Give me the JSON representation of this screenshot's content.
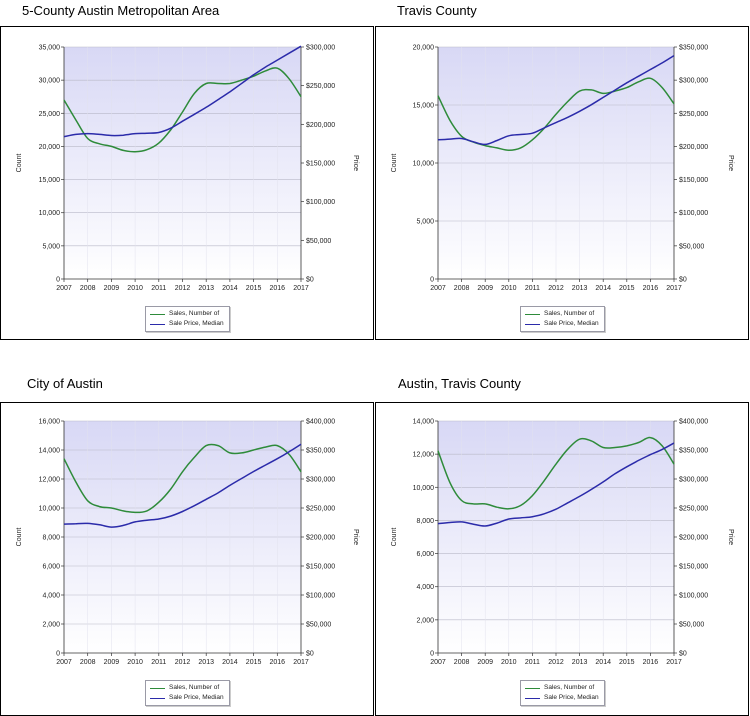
{
  "colors": {
    "sales": "#2e8b3a",
    "price": "#2b2baa",
    "bg_top": "#d8d8f5",
    "bg_bottom": "#ffffff",
    "grid": "#b9b9c8",
    "axis": "#333333"
  },
  "legend": {
    "sales_label": "Sales, Number of",
    "price_label": "Sale Price, Median"
  },
  "chart_data": [
    {
      "type": "line",
      "title": "5-County Austin Metropolitan Area",
      "xlabel": "",
      "ylabel": "Count",
      "y2label": "Price",
      "x_ticks": [
        "2007",
        "2008",
        "2009",
        "2010",
        "2011",
        "2012",
        "2013",
        "2014",
        "2015",
        "2016",
        "2017"
      ],
      "ylim": [
        0,
        35000
      ],
      "y_ticks": [
        "0",
        "5,000",
        "10,000",
        "15,000",
        "20,000",
        "25,000",
        "30,000",
        "35,000"
      ],
      "y2lim": [
        0,
        300000
      ],
      "y2_ticks": [
        "$0",
        "$50,000",
        "$100,000",
        "$150,000",
        "$200,000",
        "$250,000",
        "$300,000"
      ],
      "series": [
        {
          "name": "Sales, Number of",
          "axis": "left",
          "x": [
            2007,
            2007.5,
            2008,
            2008.5,
            2009,
            2009.5,
            2010,
            2010.5,
            2011,
            2011.5,
            2012,
            2012.5,
            2013,
            2013.5,
            2014,
            2014.5,
            2015,
            2015.5,
            2016,
            2016.5,
            2017
          ],
          "values": [
            27000,
            24000,
            21200,
            20400,
            20000,
            19400,
            19200,
            19500,
            20500,
            22500,
            25200,
            28000,
            29500,
            29500,
            29500,
            30000,
            30600,
            31400,
            31800,
            30200,
            27500
          ]
        },
        {
          "name": "Sale Price, Median",
          "axis": "right",
          "x": [
            2007,
            2007.5,
            2008,
            2008.5,
            2009,
            2009.5,
            2010,
            2010.5,
            2011,
            2011.5,
            2012,
            2012.5,
            2013,
            2013.5,
            2014,
            2014.5,
            2015,
            2015.5,
            2016,
            2016.5,
            2017
          ],
          "values": [
            184000,
            187000,
            188000,
            187000,
            185500,
            186000,
            188000,
            188500,
            189500,
            195000,
            204000,
            213000,
            222000,
            232000,
            242000,
            253000,
            264000,
            274000,
            283000,
            292000,
            301000
          ]
        }
      ]
    },
    {
      "type": "line",
      "title": "Travis County",
      "xlabel": "",
      "ylabel": "Count",
      "y2label": "Price",
      "x_ticks": [
        "2007",
        "2008",
        "2009",
        "2010",
        "2011",
        "2012",
        "2013",
        "2014",
        "2015",
        "2016",
        "2017"
      ],
      "ylim": [
        0,
        20000
      ],
      "y_ticks": [
        "0",
        "5,000",
        "10,000",
        "15,000",
        "20,000"
      ],
      "y2lim": [
        0,
        350000
      ],
      "y2_ticks": [
        "$0",
        "$50,000",
        "$100,000",
        "$150,000",
        "$200,000",
        "$250,000",
        "$300,000",
        "$350,000"
      ],
      "series": [
        {
          "name": "Sales, Number of",
          "axis": "left",
          "x": [
            2007,
            2007.5,
            2008,
            2008.5,
            2009,
            2009.5,
            2010,
            2010.5,
            2011,
            2011.5,
            2012,
            2012.5,
            2013,
            2013.5,
            2014,
            2014.5,
            2015,
            2015.5,
            2016,
            2016.5,
            2017
          ],
          "values": [
            15800,
            13700,
            12300,
            11800,
            11500,
            11300,
            11100,
            11300,
            12000,
            13000,
            14200,
            15300,
            16200,
            16300,
            16000,
            16200,
            16500,
            17000,
            17300,
            16500,
            15100
          ]
        },
        {
          "name": "Sale Price, Median",
          "axis": "right",
          "x": [
            2007,
            2007.5,
            2008,
            2008.5,
            2009,
            2009.5,
            2010,
            2010.5,
            2011,
            2011.5,
            2012,
            2012.5,
            2013,
            2013.5,
            2014,
            2014.5,
            2015,
            2015.5,
            2016,
            2016.5,
            2017
          ],
          "values": [
            210000,
            211000,
            212000,
            207000,
            203000,
            209000,
            216000,
            218000,
            220000,
            228000,
            236000,
            244000,
            253000,
            263000,
            274000,
            285000,
            296000,
            306000,
            316000,
            326000,
            337000
          ]
        }
      ]
    },
    {
      "type": "line",
      "title": "City of Austin",
      "xlabel": "",
      "ylabel": "Count",
      "y2label": "Price",
      "x_ticks": [
        "2007",
        "2008",
        "2009",
        "2010",
        "2011",
        "2012",
        "2013",
        "2014",
        "2015",
        "2016",
        "2017"
      ],
      "ylim": [
        0,
        16000
      ],
      "y_ticks": [
        "0",
        "2,000",
        "4,000",
        "6,000",
        "8,000",
        "10,000",
        "12,000",
        "14,000",
        "16,000"
      ],
      "y2lim": [
        0,
        400000
      ],
      "y2_ticks": [
        "$0",
        "$50,000",
        "$100,000",
        "$150,000",
        "$200,000",
        "$250,000",
        "$300,000",
        "$350,000",
        "$400,000"
      ],
      "series": [
        {
          "name": "Sales, Number of",
          "axis": "left",
          "x": [
            2007,
            2007.5,
            2008,
            2008.5,
            2009,
            2009.5,
            2010,
            2010.5,
            2011,
            2011.5,
            2012,
            2012.5,
            2013,
            2013.5,
            2014,
            2014.5,
            2015,
            2015.5,
            2016,
            2016.5,
            2017
          ],
          "values": [
            13400,
            11800,
            10500,
            10100,
            10000,
            9800,
            9700,
            9800,
            10400,
            11300,
            12500,
            13500,
            14300,
            14300,
            13800,
            13800,
            14000,
            14200,
            14300,
            13700,
            12500
          ]
        },
        {
          "name": "Sale Price, Median",
          "axis": "right",
          "x": [
            2007,
            2007.5,
            2008,
            2008.5,
            2009,
            2009.5,
            2010,
            2010.5,
            2011,
            2011.5,
            2012,
            2012.5,
            2013,
            2013.5,
            2014,
            2014.5,
            2015,
            2015.5,
            2016,
            2016.5,
            2017
          ],
          "values": [
            222000,
            223000,
            223500,
            221000,
            217000,
            220000,
            226000,
            229000,
            231000,
            236000,
            244000,
            254000,
            265000,
            276000,
            289000,
            301000,
            313000,
            324000,
            335000,
            347000,
            360000
          ]
        }
      ]
    },
    {
      "type": "line",
      "title": "Austin, Travis County",
      "xlabel": "",
      "ylabel": "Count",
      "y2label": "Price",
      "x_ticks": [
        "2007",
        "2008",
        "2009",
        "2010",
        "2011",
        "2012",
        "2013",
        "2014",
        "2015",
        "2016",
        "2017"
      ],
      "ylim": [
        0,
        14000
      ],
      "y_ticks": [
        "0",
        "2,000",
        "4,000",
        "6,000",
        "8,000",
        "10,000",
        "12,000",
        "14,000"
      ],
      "y2lim": [
        0,
        400000
      ],
      "y2_ticks": [
        "$0",
        "$50,000",
        "$100,000",
        "$150,000",
        "$200,000",
        "$250,000",
        "$300,000",
        "$350,000",
        "$400,000"
      ],
      "series": [
        {
          "name": "Sales, Number of",
          "axis": "left",
          "x": [
            2007,
            2007.5,
            2008,
            2008.5,
            2009,
            2009.5,
            2010,
            2010.5,
            2011,
            2011.5,
            2012,
            2012.5,
            2013,
            2013.5,
            2014,
            2014.5,
            2015,
            2015.5,
            2016,
            2016.5,
            2017
          ],
          "values": [
            12200,
            10300,
            9200,
            9000,
            9000,
            8800,
            8700,
            8900,
            9500,
            10400,
            11400,
            12300,
            12900,
            12800,
            12400,
            12400,
            12500,
            12700,
            13000,
            12500,
            11400
          ]
        },
        {
          "name": "Sale Price, Median",
          "axis": "right",
          "x": [
            2007,
            2007.5,
            2008,
            2008.5,
            2009,
            2009.5,
            2010,
            2010.5,
            2011,
            2011.5,
            2012,
            2012.5,
            2013,
            2013.5,
            2014,
            2014.5,
            2015,
            2015.5,
            2016,
            2016.5,
            2017
          ],
          "values": [
            223000,
            225000,
            226000,
            222000,
            219000,
            224000,
            231000,
            233000,
            235000,
            240000,
            248000,
            259000,
            270000,
            282000,
            295000,
            309000,
            321000,
            332000,
            342000,
            351000,
            362000
          ]
        }
      ]
    }
  ]
}
